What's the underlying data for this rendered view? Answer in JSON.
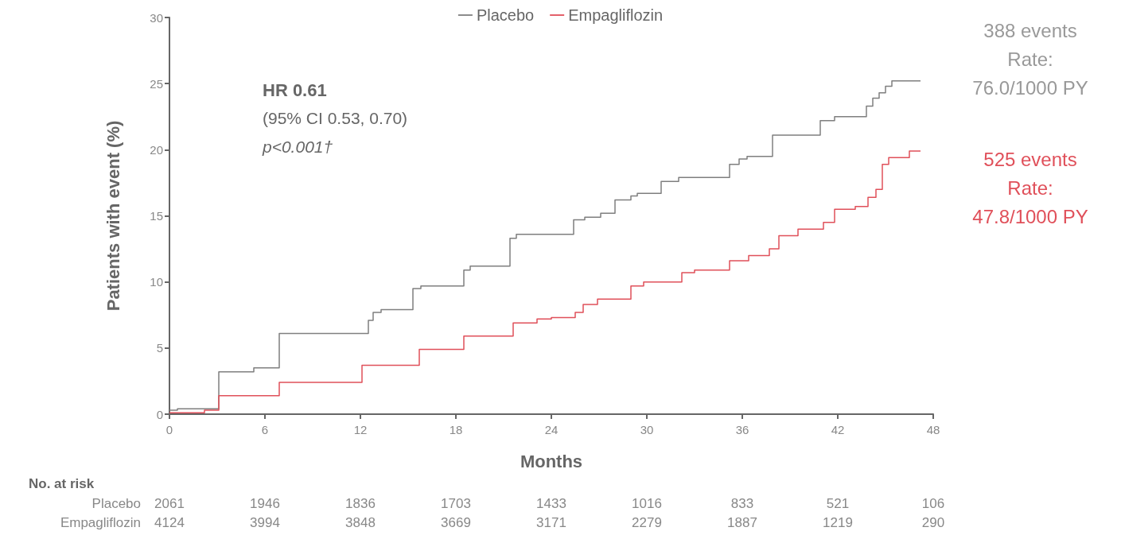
{
  "chart_data": {
    "type": "step",
    "xlabel": "Months",
    "ylabel": "Patients with event (%)",
    "xlim": [
      0,
      48
    ],
    "xticks": [
      0,
      6,
      12,
      18,
      24,
      30,
      36,
      42,
      48
    ],
    "ylim": [
      0,
      30
    ],
    "yticks": [
      0,
      5,
      10,
      15,
      20,
      25,
      30
    ],
    "grid": false,
    "legend": "top",
    "line_style": "solid",
    "marker": "none",
    "series": [
      {
        "name": "Placebo",
        "color": "#7f7f7f",
        "x": [
          0,
          0.5,
          2.7,
          3.1,
          5.3,
          6.6,
          6.9,
          12.5,
          12.8,
          13.3,
          14.2,
          15.3,
          15.8,
          18.5,
          18.9,
          21.4,
          21.8,
          25.4,
          26.1,
          27.1,
          28.0,
          29.0,
          29.4,
          30.9,
          32.0,
          32.2,
          35.2,
          35.8,
          36.3,
          37.9,
          40.9,
          41.8,
          43.8,
          44.2,
          44.6,
          45.0,
          45.4,
          47.2
        ],
        "values": [
          0.3,
          0.4,
          0.4,
          3.2,
          3.5,
          3.5,
          6.1,
          7.1,
          7.7,
          7.9,
          7.9,
          9.5,
          9.7,
          10.9,
          11.2,
          13.3,
          13.6,
          14.7,
          14.9,
          15.2,
          16.2,
          16.5,
          16.7,
          17.6,
          17.9,
          17.9,
          18.9,
          19.3,
          19.5,
          21.1,
          22.2,
          22.5,
          23.3,
          23.9,
          24.3,
          24.8,
          25.2,
          25.2
        ]
      },
      {
        "name": "Empagliflozin",
        "color": "#e0505a",
        "x": [
          0,
          2.2,
          2.7,
          3.1,
          6.2,
          6.9,
          11.6,
          12.1,
          15.1,
          15.7,
          18.2,
          18.5,
          21.4,
          21.6,
          23.1,
          24.0,
          25.5,
          26.0,
          26.9,
          29.0,
          29.8,
          32.2,
          33.0,
          35.2,
          36.4,
          37.7,
          38.3,
          39.5,
          41.1,
          41.8,
          43.1,
          43.9,
          44.4,
          44.8,
          45.2,
          46.5,
          47.2
        ],
        "values": [
          0.1,
          0.3,
          0.3,
          1.4,
          1.4,
          2.4,
          2.4,
          3.7,
          3.7,
          4.9,
          4.9,
          5.9,
          5.9,
          6.9,
          7.2,
          7.3,
          7.7,
          8.3,
          8.7,
          9.7,
          10.0,
          10.7,
          10.9,
          11.6,
          12.0,
          12.5,
          13.5,
          14.0,
          14.5,
          15.5,
          15.7,
          16.4,
          17.0,
          18.9,
          19.4,
          19.9,
          19.9
        ]
      }
    ],
    "annotations": [
      "HR 0.61",
      "(95% CI 0.53, 0.70)",
      "p<0.001†",
      "388 events\nRate:\n76.0/1000 PY",
      "525 events\nRate:\n47.8/1000 PY",
      "No. at risk",
      "Placebo",
      "2061",
      "1946",
      "1836",
      "1703",
      "1433",
      "1016",
      "833",
      "521",
      "106",
      "Empagliflozin",
      "4124",
      "3994",
      "3848",
      "3669",
      "3171",
      "2279",
      "1887",
      "1219",
      "290"
    ]
  }
}
